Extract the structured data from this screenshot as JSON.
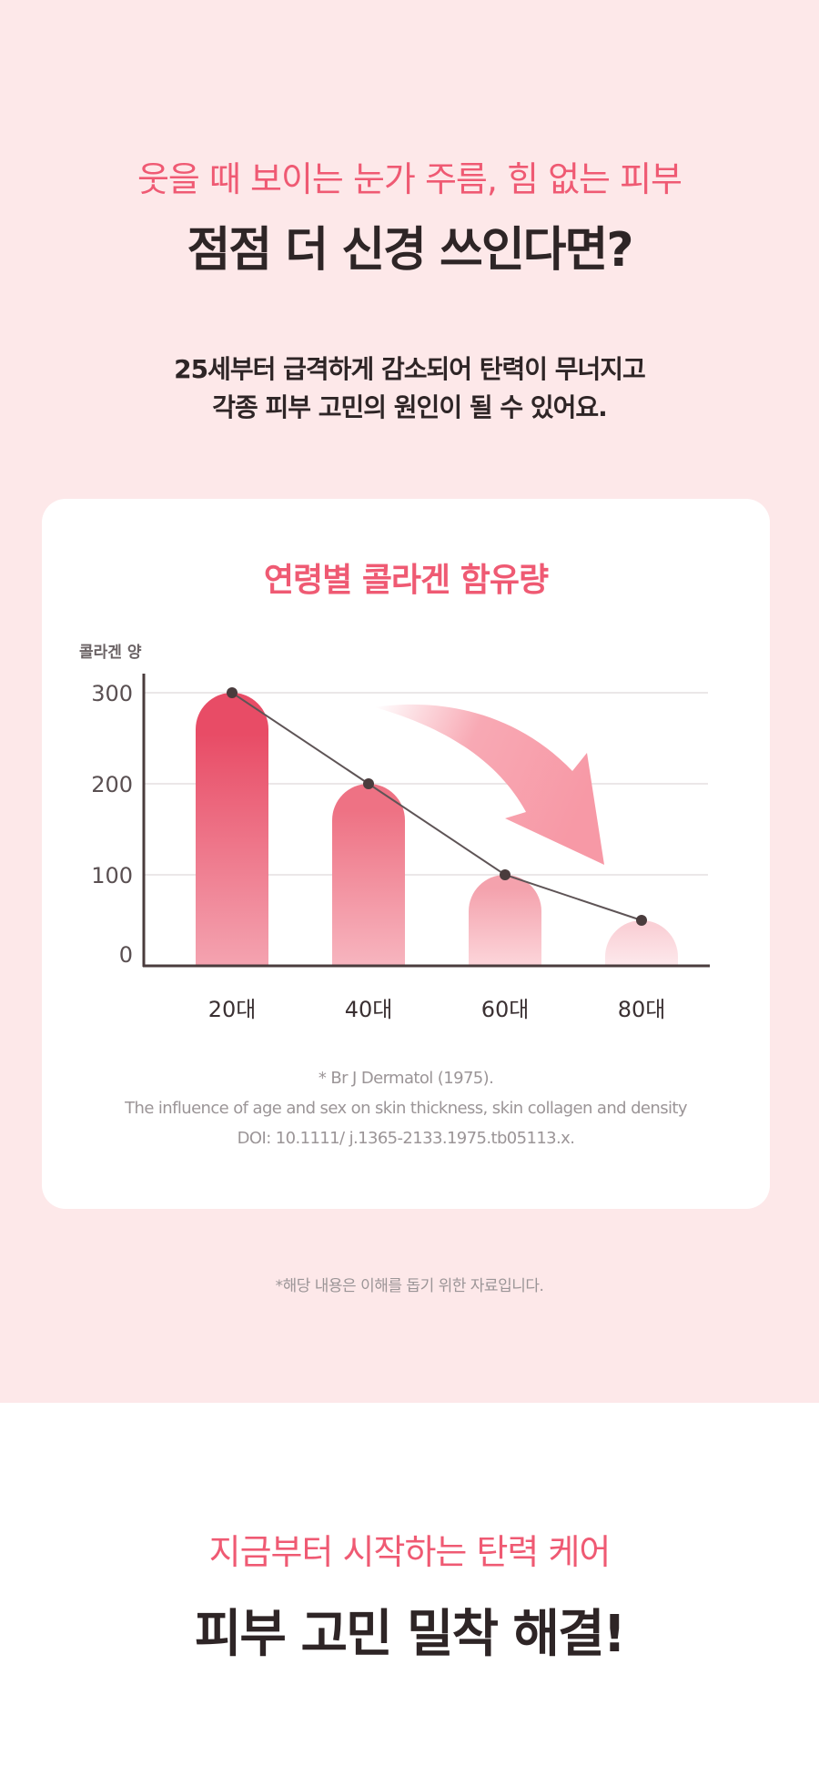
{
  "header": {
    "subtitle": "웃을 때 보이는 눈가 주름, 힘 없는 피부",
    "title": "점점 더 신경 쓰인다면?",
    "description_lines": [
      "25세부터 급격하게 감소되어 탄력이 무너지고",
      "각종 피부 고민의 원인이 될 수 있어요."
    ]
  },
  "card": {
    "title": "연령별 콜라겐 함유량",
    "references": [
      "* Br J Dermatol (1975).",
      "The influence of age and sex on skin thickness, skin collagen and density",
      "DOI: 10.1111/ j.1365-2133.1975.tb05113.x."
    ]
  },
  "chart_data": {
    "type": "bar",
    "title": "연령별 콜라겐 함유량",
    "ylabel": "콜라겐 양",
    "xlabel": "",
    "categories": [
      "20대",
      "40대",
      "60대",
      "80대"
    ],
    "values": [
      300,
      200,
      100,
      50
    ],
    "yticks": [
      0,
      100,
      200,
      300
    ],
    "ylim": [
      0,
      300
    ],
    "grid": true,
    "overlay_line": true,
    "trend_arrow": "decreasing",
    "colors": [
      "#e84c66",
      "#ee7284",
      "#f4a2ad",
      "#fad0d6"
    ]
  },
  "disclaimer": "*해당 내용은 이해를 돕기 위한 자료입니다.",
  "footer": {
    "subtitle": "지금부터 시작하는 탄력 케어",
    "title": "피부 고민 밀착 해결!"
  },
  "colors": {
    "accent": "#ef5a73",
    "background": "#fde8e9",
    "text": "#2e2526"
  }
}
